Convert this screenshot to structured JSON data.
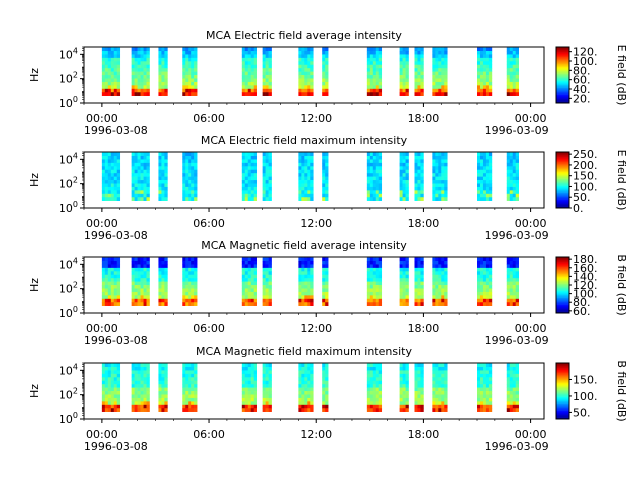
{
  "chart_data": [
    {
      "type": "heatmap",
      "title": "MCA  Electric field average intensity",
      "ylabel": "Hz",
      "yscale": "log",
      "ylim": [
        1,
        40000
      ],
      "yticks": [
        "10^0",
        "10^2",
        "10^4"
      ],
      "xlim": [
        "1996-03-07T23:00",
        "1996-03-09T00:45"
      ],
      "xticks": [
        "00:00",
        "06:00",
        "12:00",
        "18:00",
        "00:00"
      ],
      "xtick_dates": [
        "1996-03-08",
        "1996-03-09"
      ],
      "colorbar": {
        "label": "E field (dB)",
        "range": [
          10,
          130
        ],
        "ticks": [
          "20.",
          "40.",
          "60.",
          "80.",
          "100.",
          "120."
        ]
      },
      "colormap": "jet",
      "grid": false,
      "data_segments_utc": [
        [
          "00:00",
          "01:00"
        ],
        [
          "01:40",
          "02:40"
        ],
        [
          "03:10",
          "03:40"
        ],
        [
          "04:30",
          "05:20"
        ],
        [
          "07:50",
          "08:40"
        ],
        [
          "09:00",
          "09:30"
        ],
        [
          "11:00",
          "11:50"
        ],
        [
          "12:20",
          "12:40"
        ],
        [
          "14:50",
          "15:40"
        ],
        [
          "16:40",
          "17:10"
        ],
        [
          "17:30",
          "18:00"
        ],
        [
          "18:30",
          "19:20"
        ],
        [
          "21:00",
          "21:50"
        ],
        [
          "22:40",
          "23:20"
        ]
      ]
    },
    {
      "type": "heatmap",
      "title": "MCA  Electric field maximum intensity",
      "ylabel": "Hz",
      "yscale": "log",
      "ylim": [
        1,
        40000
      ],
      "yticks": [
        "10^0",
        "10^2",
        "10^4"
      ],
      "xlim": [
        "1996-03-07T23:00",
        "1996-03-09T00:45"
      ],
      "xticks": [
        "00:00",
        "06:00",
        "12:00",
        "18:00",
        "00:00"
      ],
      "xtick_dates": [
        "1996-03-08",
        "1996-03-09"
      ],
      "colorbar": {
        "label": "E field (dB)",
        "range": [
          0,
          260
        ],
        "ticks": [
          "0.",
          "50.",
          "100.",
          "150.",
          "200.",
          "250."
        ]
      },
      "colormap": "jet",
      "grid": false,
      "data_segments_utc": [
        [
          "00:00",
          "01:00"
        ],
        [
          "01:40",
          "02:40"
        ],
        [
          "03:10",
          "03:40"
        ],
        [
          "04:30",
          "05:20"
        ],
        [
          "07:50",
          "08:40"
        ],
        [
          "09:00",
          "09:30"
        ],
        [
          "11:00",
          "11:50"
        ],
        [
          "12:20",
          "12:40"
        ],
        [
          "14:50",
          "15:40"
        ],
        [
          "16:40",
          "17:10"
        ],
        [
          "17:30",
          "18:00"
        ],
        [
          "18:30",
          "19:20"
        ],
        [
          "21:00",
          "21:50"
        ],
        [
          "22:40",
          "23:20"
        ]
      ]
    },
    {
      "type": "heatmap",
      "title": "MCA  Magnetic field average intensity",
      "ylabel": "Hz",
      "yscale": "log",
      "ylim": [
        1,
        40000
      ],
      "yticks": [
        "10^0",
        "10^2",
        "10^4"
      ],
      "xlim": [
        "1996-03-07T23:00",
        "1996-03-09T00:45"
      ],
      "xticks": [
        "00:00",
        "06:00",
        "12:00",
        "18:00",
        "00:00"
      ],
      "xtick_dates": [
        "1996-03-08",
        "1996-03-09"
      ],
      "colorbar": {
        "label": "B field (dB)",
        "range": [
          55,
          185
        ],
        "ticks": [
          "60.",
          "80.",
          "100.",
          "120.",
          "140.",
          "160.",
          "180."
        ]
      },
      "colormap": "jet",
      "grid": false,
      "data_segments_utc": [
        [
          "00:00",
          "01:00"
        ],
        [
          "01:40",
          "02:40"
        ],
        [
          "03:10",
          "03:40"
        ],
        [
          "04:30",
          "05:20"
        ],
        [
          "07:50",
          "08:40"
        ],
        [
          "09:00",
          "09:30"
        ],
        [
          "11:00",
          "11:50"
        ],
        [
          "12:20",
          "12:40"
        ],
        [
          "14:50",
          "15:40"
        ],
        [
          "16:40",
          "17:10"
        ],
        [
          "17:30",
          "18:00"
        ],
        [
          "18:30",
          "19:20"
        ],
        [
          "21:00",
          "21:50"
        ],
        [
          "22:40",
          "23:20"
        ]
      ]
    },
    {
      "type": "heatmap",
      "title": "MCA  Magnetic field maximum intensity",
      "ylabel": "Hz",
      "yscale": "log",
      "ylim": [
        1,
        40000
      ],
      "yticks": [
        "10^0",
        "10^2",
        "10^4"
      ],
      "xlim": [
        "1996-03-07T23:00",
        "1996-03-09T00:45"
      ],
      "xticks": [
        "00:00",
        "06:00",
        "12:00",
        "18:00",
        "00:00"
      ],
      "xtick_dates": [
        "1996-03-08",
        "1996-03-09"
      ],
      "colorbar": {
        "label": "B field (dB)",
        "range": [
          30,
          200
        ],
        "ticks": [
          "50.",
          "100.",
          "150."
        ]
      },
      "colormap": "jet",
      "grid": false,
      "data_segments_utc": [
        [
          "00:00",
          "01:00"
        ],
        [
          "01:40",
          "02:40"
        ],
        [
          "03:10",
          "03:40"
        ],
        [
          "04:30",
          "05:20"
        ],
        [
          "07:50",
          "08:40"
        ],
        [
          "09:00",
          "09:30"
        ],
        [
          "11:00",
          "11:50"
        ],
        [
          "12:20",
          "12:40"
        ],
        [
          "14:50",
          "15:40"
        ],
        [
          "16:40",
          "17:10"
        ],
        [
          "17:30",
          "18:00"
        ],
        [
          "18:30",
          "19:20"
        ],
        [
          "21:00",
          "21:50"
        ],
        [
          "22:40",
          "23:20"
        ]
      ]
    }
  ]
}
